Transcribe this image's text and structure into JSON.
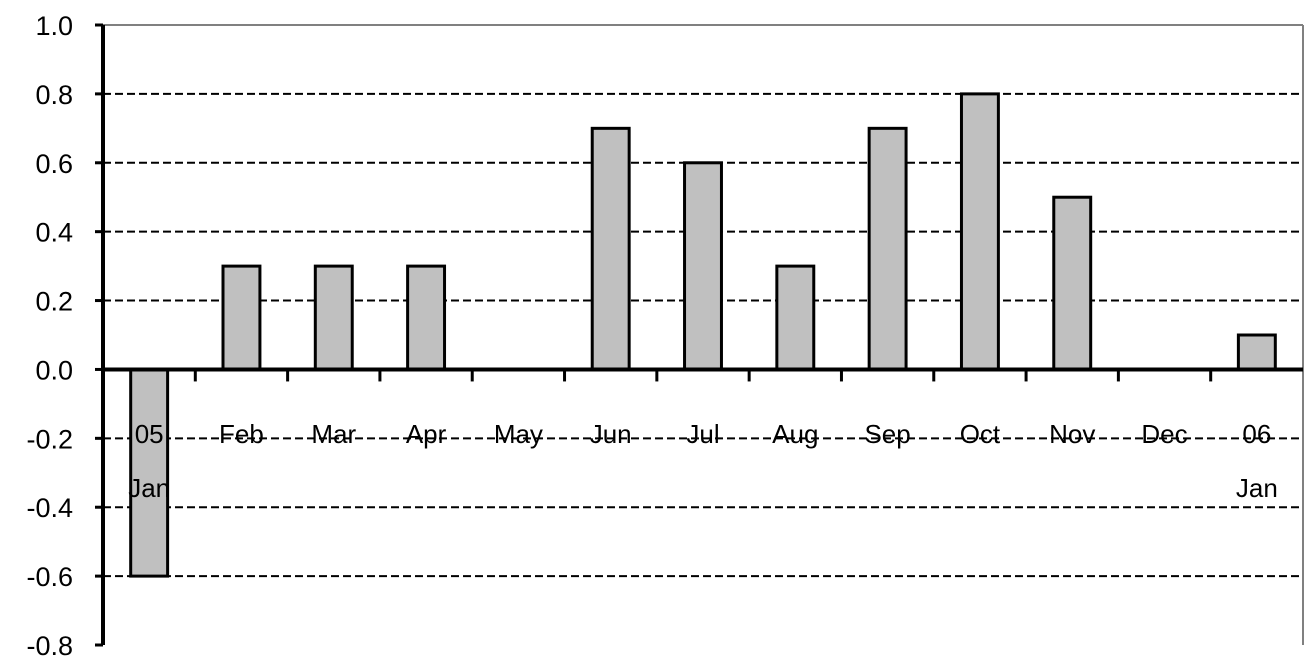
{
  "chart_data": {
    "type": "bar",
    "categories": [
      [
        "05",
        "Jan"
      ],
      [
        "Feb"
      ],
      [
        "Mar"
      ],
      [
        "Apr"
      ],
      [
        "May"
      ],
      [
        "Jun"
      ],
      [
        "Jul"
      ],
      [
        "Aug"
      ],
      [
        "Sep"
      ],
      [
        "Oct"
      ],
      [
        "Nov"
      ],
      [
        "Dec"
      ],
      [
        "06",
        "Jan"
      ]
    ],
    "values": [
      -0.6,
      0.3,
      0.3,
      0.3,
      0.0,
      0.7,
      0.6,
      0.3,
      0.7,
      0.8,
      0.5,
      0.0,
      0.1
    ],
    "ylim": [
      -0.8,
      1.0
    ],
    "yticks": [
      "-0.8",
      "-0.6",
      "-0.4",
      "-0.2",
      "0.0",
      "0.2",
      "0.4",
      "0.6",
      "0.8",
      "1.0"
    ],
    "grid": true,
    "grid_style": "dashed",
    "legend": "none",
    "colors": {
      "bar_fill": "#c0c0c0",
      "bar_stroke": "#000000",
      "grid": "#000000",
      "axis": "#000000",
      "frame": "#808080"
    }
  }
}
